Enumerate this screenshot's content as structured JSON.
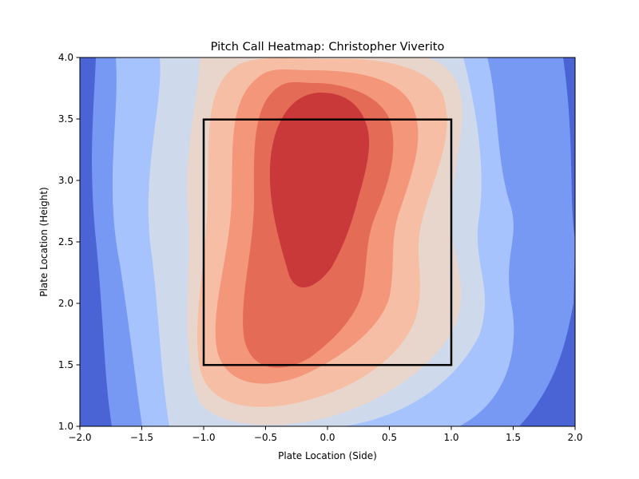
{
  "chart_data": {
    "type": "heatmap",
    "title": "Pitch Call Heatmap: Christopher Viverito",
    "xlabel": "Plate Location (Side)",
    "ylabel": "Plate Location (Height)",
    "xlim": [
      -2.0,
      2.0
    ],
    "ylim": [
      1.0,
      4.0
    ],
    "x_ticks": [
      "−2.0",
      "−1.5",
      "−1.0",
      "−0.5",
      "0.0",
      "0.5",
      "1.0",
      "1.5",
      "2.0"
    ],
    "x_tick_values": [
      -2.0,
      -1.5,
      -1.0,
      -0.5,
      0.0,
      0.5,
      1.0,
      1.5,
      2.0
    ],
    "y_ticks": [
      "1.0",
      "1.5",
      "2.0",
      "2.5",
      "3.0",
      "3.5",
      "4.0"
    ],
    "y_tick_values": [
      1.0,
      1.5,
      2.0,
      2.5,
      3.0,
      3.5,
      4.0
    ],
    "colormap": "coolwarm",
    "grid": false,
    "legend": "none",
    "contour_levels": [
      {
        "level": 0,
        "color": "#4b64d5"
      },
      {
        "level": 1,
        "color": "#7799f4"
      },
      {
        "level": 2,
        "color": "#a7c3fd"
      },
      {
        "level": 3,
        "color": "#cfd9ec"
      },
      {
        "level": 4,
        "color": "#e8d6cd"
      },
      {
        "level": 5,
        "color": "#f6bfa5"
      },
      {
        "level": 6,
        "color": "#f39679"
      },
      {
        "level": 7,
        "color": "#e46c56"
      },
      {
        "level": 8,
        "color": "#c9393a"
      }
    ],
    "density_hotspots": [
      {
        "x": 0.0,
        "y": 3.2,
        "weight": 1.0
      },
      {
        "x": -0.2,
        "y": 2.4,
        "weight": 0.9
      },
      {
        "x": -0.4,
        "y": 1.7,
        "weight": 0.55
      }
    ],
    "strike_zone": {
      "x": [
        -1.0,
        1.0
      ],
      "y": [
        1.5,
        3.5
      ],
      "color": "#000000"
    }
  }
}
